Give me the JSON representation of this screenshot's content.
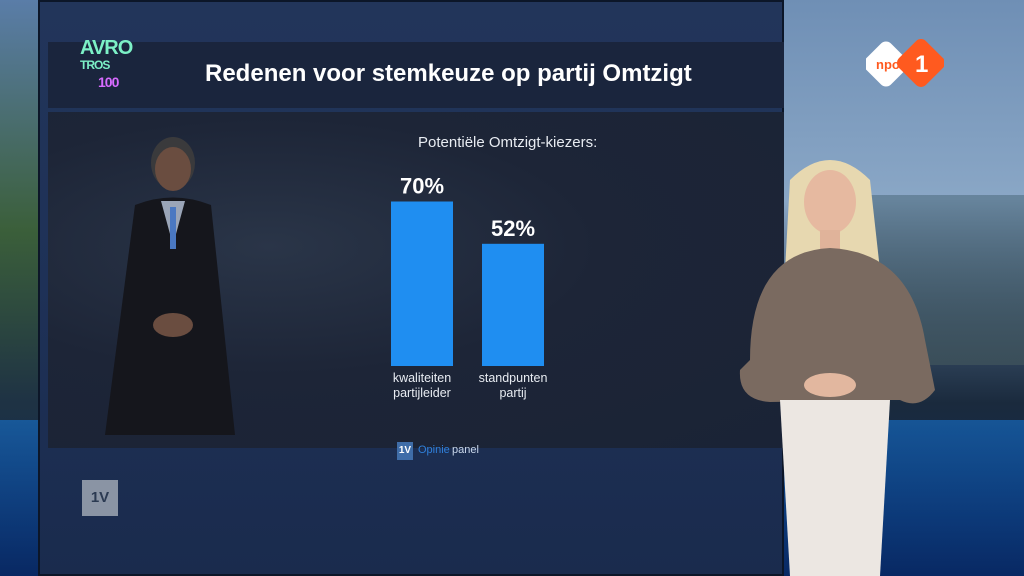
{
  "broadcast": {
    "title": "Redenen voor stemkeuze op partij Omtzigt",
    "logo_avrotros": {
      "line1": "AVRO",
      "line2": "TROS",
      "badge": "100"
    },
    "npo_logo_text": "npo",
    "npo_channel": "1",
    "corner_badge": "1V"
  },
  "chart_data": {
    "type": "bar",
    "title": "Redenen voor stemkeuze op partij Omtzigt",
    "subtitle": "Potentiële Omtzigt-kiezers:",
    "categories": [
      "kwaliteiten partijleider",
      "standpunten partij"
    ],
    "category_lines": [
      [
        "kwaliteiten",
        "partijleider"
      ],
      [
        "standpunten",
        "partij"
      ]
    ],
    "values": [
      70,
      52
    ],
    "data_labels": [
      "70%",
      "52%"
    ],
    "unit": "%",
    "ylim": [
      0,
      100
    ],
    "grid": false,
    "legend": "none",
    "bar_color": "#1f8ef1"
  },
  "source": {
    "badge": "1V",
    "brand_part1": "Opinie",
    "brand_part2": "panel"
  },
  "colors": {
    "screen_bg": "#1e3157",
    "title_bar": "#1a253d",
    "npo_orange": "#ff5a1f",
    "avro_green": "#7cf0c6",
    "avro_purple": "#d76bff"
  }
}
